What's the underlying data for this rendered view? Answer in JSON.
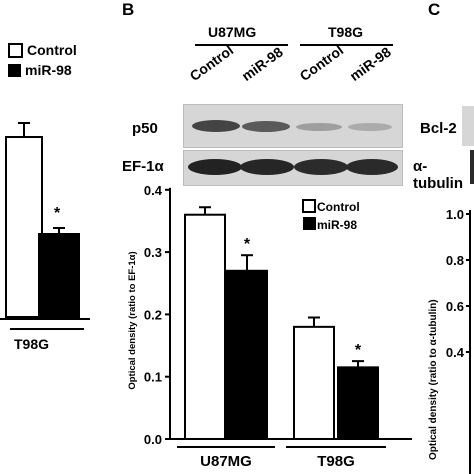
{
  "panels": {
    "B_letter": "B",
    "C_letter": "C"
  },
  "left_panel": {
    "legend": [
      {
        "label": "Control",
        "swatch": "white"
      },
      {
        "label": "miR-98",
        "swatch": "black"
      }
    ],
    "group_label": "T98G",
    "significance": "*"
  },
  "blot": {
    "cell_lines": [
      "U87MG",
      "T98G"
    ],
    "lanes": [
      "Control",
      "miR-98",
      "Control",
      "miR-98"
    ],
    "rows": [
      "p50",
      "EF-1α"
    ]
  },
  "panel_c": {
    "row_labels": [
      "Bcl-2",
      "α-tubulin"
    ],
    "ylabel": "Optical density (ratio to α-tubulin)",
    "yticks": [
      "1.0",
      "0.8",
      "0.6",
      "0.4"
    ]
  },
  "chart_data": [
    {
      "type": "bar",
      "categories": [
        "T98G"
      ],
      "series": [
        {
          "name": "Control",
          "values": [
            1.0
          ],
          "errors": [
            0.08
          ]
        },
        {
          "name": "miR-98",
          "values": [
            0.47
          ],
          "errors": [
            0.03
          ]
        }
      ],
      "ylim": [
        0,
        1.2
      ],
      "significance": [
        "*"
      ]
    },
    {
      "type": "bar",
      "categories": [
        "U87MG",
        "T98G"
      ],
      "series": [
        {
          "name": "Control",
          "values": [
            0.36,
            0.18
          ],
          "errors": [
            0.012,
            0.015
          ]
        },
        {
          "name": "miR-98",
          "values": [
            0.27,
            0.115
          ],
          "errors": [
            0.025,
            0.01
          ]
        }
      ],
      "ylabel": "Optical density (ratio to EF-1α)",
      "ylim": [
        0,
        0.4
      ],
      "yticks": [
        "0.0",
        "0.1",
        "0.2",
        "0.3",
        "0.4"
      ],
      "legend": [
        "Control",
        "miR-98"
      ],
      "significance": [
        "*",
        "*"
      ]
    }
  ],
  "colors": {
    "control_fill": "#ffffff",
    "mir_fill": "#000000",
    "blot_background": "#d6d6d6"
  }
}
